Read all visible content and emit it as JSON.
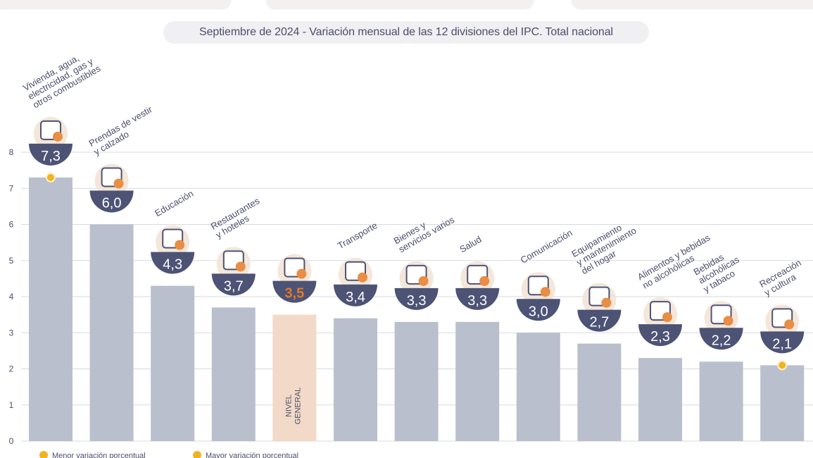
{
  "header": {
    "title": "Septiembre de 2024 - Variación mensual de las 12 divisiones del IPC. Total nacional"
  },
  "chart_data": {
    "type": "bar",
    "title": "Septiembre de 2024 - Variación mensual de las 12 divisiones del IPC. Total nacional",
    "xlabel": "",
    "ylabel": "",
    "ylim": [
      0,
      8
    ],
    "yticks": [
      0,
      1,
      2,
      3,
      4,
      5,
      6,
      7,
      8
    ],
    "grid": true,
    "categories": [
      "Vivienda, agua, electricidad, gas y otros combustibles",
      "Prendas de vestir y calzado",
      "Educación",
      "Restaurantes y hoteles",
      "NIVEL GENERAL",
      "Transporte",
      "Bienes y servicios varios",
      "Salud",
      "Comunicación",
      "Equipamiento y mantenimiento del hogar",
      "Alimentos y bebidas no alcohólicas",
      "Bebidas alcohólicas y tabaco",
      "Recreación y cultura"
    ],
    "category_lines": [
      [
        "Vivienda, agua,",
        "electricidad, gas y",
        "otros combustibles"
      ],
      [
        "Prendas de vestir",
        "y calzado"
      ],
      [
        "Educación"
      ],
      [
        "Restaurantes",
        "y hoteles"
      ],
      [
        "NIVEL",
        "GENERAL"
      ],
      [
        "Transporte"
      ],
      [
        "Bienes y",
        "servicios varios"
      ],
      [
        "Salud"
      ],
      [
        "Comunicación"
      ],
      [
        "Equipamiento",
        "y mantenimiento",
        "del hogar"
      ],
      [
        "Alimentos y bebidas",
        "no alcohólicas"
      ],
      [
        "Bebidas",
        "alcohólicas",
        "y tabaco"
      ],
      [
        "Recreación",
        "y cultura"
      ]
    ],
    "values": [
      7.3,
      6.0,
      4.3,
      3.7,
      3.5,
      3.4,
      3.3,
      3.3,
      3.0,
      2.7,
      2.3,
      2.2,
      2.1
    ],
    "value_labels": [
      "7,3",
      "6,0",
      "4,3",
      "3,7",
      "3,5",
      "3,4",
      "3,3",
      "3,3",
      "3,0",
      "2,7",
      "2,3",
      "2,2",
      "2,1"
    ],
    "highlight_index": 4,
    "max_marker_index": 0,
    "min_marker_index": 12,
    "icons": [
      "light-bulb-icon",
      "tshirt-icon",
      "notebook-icon",
      "cutlery-icon",
      "basket-icon",
      "sube-card-icon",
      "comb-scissors-icon",
      "first-aid-icon",
      "smartphone-icon",
      "washing-machine-icon",
      "food-icon",
      "wine-bottle-icon",
      "umbrella-sun-icon"
    ],
    "colors": {
      "bar": "#b9bfcc",
      "bar_highlight": "#f2d9c8",
      "badge": "#4d5375",
      "badge_text": "#ffffff",
      "highlight_text": "#e07a2a",
      "marker": "#f0b323",
      "label": "#4b4e6b",
      "grid": "#d7d9e0"
    },
    "legend": {
      "items": [
        "Menor variación porcentual",
        "Mayor variación porcentual"
      ],
      "placement": "bottom-left"
    }
  }
}
